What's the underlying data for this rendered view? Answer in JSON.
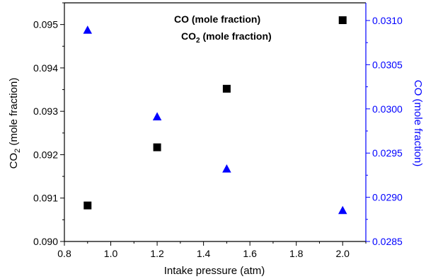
{
  "chart_data": {
    "type": "scatter",
    "title": "",
    "xlabel": "Intake pressure (atm)",
    "ylabel_left": "CO2 (mole fraction)",
    "ylabel_right": "CO (mole fraction)",
    "xlim": [
      0.8,
      2.1
    ],
    "ylim_left": [
      0.09,
      0.0955
    ],
    "ylim_right": [
      0.0285,
      0.0312
    ],
    "x_ticks": [
      "0.8",
      "1.0",
      "1.2",
      "1.4",
      "1.6",
      "1.8",
      "2.0"
    ],
    "y_left_ticks": [
      "0.090",
      "0.091",
      "0.092",
      "0.093",
      "0.094",
      "0.095"
    ],
    "y_right_ticks": [
      "0.0285",
      "0.0290",
      "0.0295",
      "0.0300",
      "0.0305",
      "0.0310"
    ],
    "legend_position": "top-center",
    "grid": false,
    "series": [
      {
        "name": "CO (mole fraction)",
        "axis": "right",
        "marker": "triangle",
        "color": "#0000ff",
        "x": [
          0.9,
          1.2,
          1.5,
          2.0
        ],
        "y": [
          0.03089,
          0.02991,
          0.02932,
          0.02885
        ]
      },
      {
        "name": "CO2 (mole fraction)",
        "axis": "left",
        "marker": "square",
        "color": "#000000",
        "x": [
          0.9,
          1.2,
          1.5,
          2.0
        ],
        "y": [
          0.09083,
          0.09217,
          0.09352,
          0.0951
        ]
      }
    ],
    "colors": {
      "axis_left": "#000000",
      "axis_right": "#0000ff"
    }
  }
}
